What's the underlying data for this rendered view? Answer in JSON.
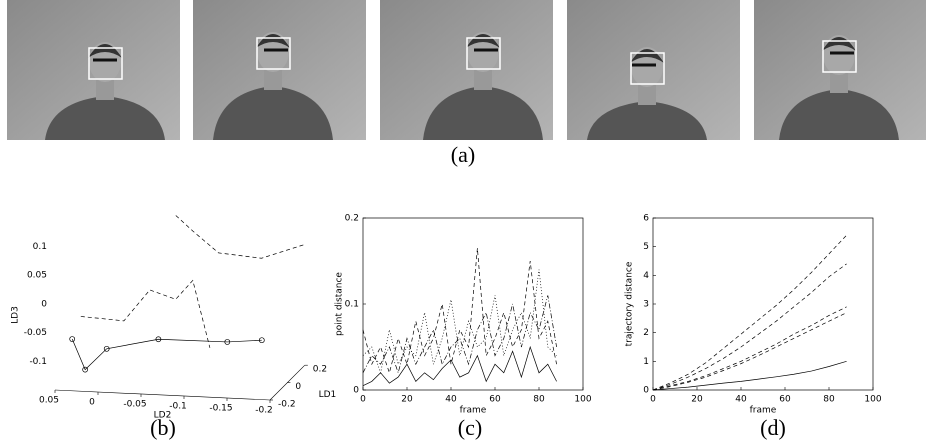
{
  "captions": [
    "(a)",
    "(b)",
    "(c)",
    "(d)"
  ],
  "chart_data": [
    {
      "type": "line3d",
      "xlabel": "LD1",
      "ylabel": "LD2",
      "zlabel": "LD3",
      "xlim": [
        -0.2,
        0.2
      ],
      "xticks": [
        -0.2,
        0,
        0.2
      ],
      "ylim": [
        -0.2,
        0.05
      ],
      "yticks": [
        0.05,
        0,
        -0.05,
        -0.1,
        -0.15,
        -0.2
      ],
      "zlim": [
        -0.15,
        0.1
      ],
      "zticks": [
        -0.1,
        -0.05,
        0,
        0.05,
        0.1
      ],
      "series": [
        {
          "color": "#000000",
          "style": "solid",
          "marker": "circle",
          "x": [
            -0.2,
            -0.15,
            -0.1,
            0.0,
            0.1,
            0.2
          ],
          "y": [
            0.03,
            0.02,
            0.0,
            -0.05,
            -0.12,
            -0.15
          ],
          "z": [
            -0.06,
            -0.12,
            -0.09,
            -0.085,
            -0.1,
            -0.11
          ]
        },
        {
          "color": "#000000",
          "style": "dashed",
          "x": [
            0.2,
            0.1,
            0.0,
            -0.1,
            0.2
          ],
          "y": [
            -0.05,
            -0.08,
            -0.12,
            -0.18,
            -0.2
          ],
          "z": [
            0.1,
            0.09,
            0.07,
            0.08,
            0.06
          ]
        },
        {
          "color": "#000000",
          "style": "dashed",
          "x": [
            -0.2,
            -0.1,
            0.0,
            0.1,
            0.0,
            -0.1
          ],
          "y": [
            0.02,
            -0.02,
            -0.04,
            -0.06,
            -0.09,
            -0.12
          ],
          "z": [
            -0.02,
            -0.04,
            0.0,
            -0.03,
            0.02,
            -0.08
          ]
        }
      ]
    },
    {
      "type": "line",
      "xlabel": "frame",
      "ylabel": "point distance",
      "xlim": [
        0,
        100
      ],
      "xticks": [
        0,
        20,
        40,
        60,
        80,
        100
      ],
      "ylim": [
        0,
        0.2
      ],
      "yticks": [
        0,
        0.1,
        0.2
      ],
      "x": [
        0,
        4,
        8,
        12,
        16,
        20,
        24,
        28,
        32,
        36,
        40,
        44,
        48,
        52,
        56,
        60,
        64,
        68,
        72,
        76,
        80,
        84,
        88
      ],
      "series": [
        {
          "color": "#000000",
          "style": "solid",
          "values": [
            0.005,
            0.01,
            0.02,
            0.008,
            0.015,
            0.03,
            0.01,
            0.02,
            0.012,
            0.025,
            0.035,
            0.015,
            0.02,
            0.04,
            0.01,
            0.03,
            0.02,
            0.045,
            0.015,
            0.05,
            0.02,
            0.03,
            0.01
          ]
        },
        {
          "color": "#000000",
          "style": "dashed",
          "values": [
            0.07,
            0.03,
            0.05,
            0.02,
            0.06,
            0.03,
            0.08,
            0.04,
            0.06,
            0.1,
            0.03,
            0.07,
            0.05,
            0.165,
            0.04,
            0.06,
            0.09,
            0.05,
            0.07,
            0.15,
            0.06,
            0.08,
            0.03
          ]
        },
        {
          "color": "#000000",
          "style": "dotted",
          "values": [
            0.04,
            0.05,
            0.02,
            0.07,
            0.03,
            0.05,
            0.04,
            0.09,
            0.03,
            0.06,
            0.105,
            0.04,
            0.08,
            0.05,
            0.06,
            0.11,
            0.04,
            0.07,
            0.09,
            0.06,
            0.14,
            0.05,
            0.04
          ]
        },
        {
          "color": "#000000",
          "style": "dashdot",
          "values": [
            0.02,
            0.04,
            0.03,
            0.05,
            0.02,
            0.06,
            0.03,
            0.05,
            0.07,
            0.03,
            0.05,
            0.06,
            0.03,
            0.07,
            0.09,
            0.04,
            0.06,
            0.1,
            0.05,
            0.09,
            0.07,
            0.11,
            0.05
          ]
        }
      ]
    },
    {
      "type": "line",
      "xlabel": "frame",
      "ylabel": "trajectory distance",
      "xlim": [
        0,
        100
      ],
      "xticks": [
        0,
        20,
        40,
        60,
        80,
        100
      ],
      "ylim": [
        0,
        6
      ],
      "yticks": [
        0,
        1,
        2,
        3,
        4,
        5,
        6
      ],
      "x": [
        0,
        8,
        16,
        24,
        32,
        40,
        48,
        56,
        64,
        72,
        80,
        88
      ],
      "series": [
        {
          "color": "#000000",
          "style": "solid",
          "values": [
            0,
            0.05,
            0.1,
            0.17,
            0.24,
            0.3,
            0.38,
            0.46,
            0.55,
            0.66,
            0.82,
            1.0
          ]
        },
        {
          "color": "#000000",
          "style": "dashed",
          "values": [
            0,
            0.25,
            0.55,
            0.95,
            1.45,
            1.95,
            2.45,
            2.95,
            3.5,
            4.1,
            4.75,
            5.4
          ]
        },
        {
          "color": "#000000",
          "style": "dashed",
          "values": [
            0,
            0.2,
            0.45,
            0.75,
            1.1,
            1.5,
            1.95,
            2.4,
            2.9,
            3.4,
            3.95,
            4.4
          ]
        },
        {
          "color": "#000000",
          "style": "dashed",
          "values": [
            0,
            0.15,
            0.3,
            0.5,
            0.75,
            1.0,
            1.3,
            1.6,
            1.95,
            2.25,
            2.6,
            2.9
          ]
        },
        {
          "color": "#000000",
          "style": "dashed",
          "values": [
            0,
            0.12,
            0.27,
            0.45,
            0.68,
            0.92,
            1.2,
            1.5,
            1.8,
            2.1,
            2.4,
            2.7
          ]
        }
      ]
    }
  ]
}
